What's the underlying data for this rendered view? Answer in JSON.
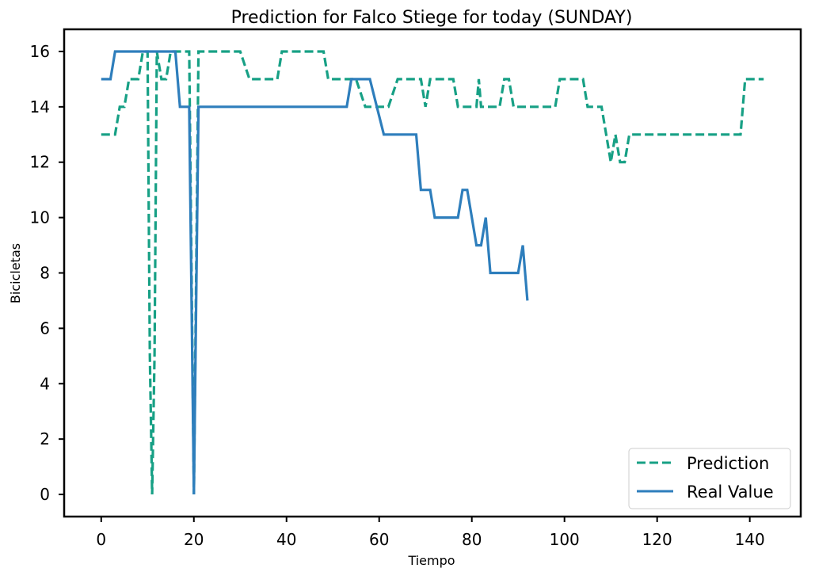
{
  "chart_data": {
    "type": "line",
    "title": "Prediction for Falco Stiege for today (SUNDAY)",
    "xlabel": "Tiempo",
    "ylabel": "Bicicletas",
    "xlim": [
      -8,
      151
    ],
    "ylim": [
      -0.8,
      16.8
    ],
    "xticks": [
      0,
      20,
      40,
      60,
      80,
      100,
      120,
      140
    ],
    "yticks": [
      0,
      2,
      4,
      6,
      8,
      10,
      12,
      14,
      16
    ],
    "grid": false,
    "legend_position": "lower-right",
    "series": [
      {
        "name": "Prediction",
        "color": "#17a085",
        "style": "dashed",
        "points": [
          [
            0,
            13
          ],
          [
            3,
            13
          ],
          [
            4,
            14
          ],
          [
            5,
            14
          ],
          [
            6,
            15
          ],
          [
            8,
            15
          ],
          [
            9,
            16
          ],
          [
            10,
            16
          ],
          [
            10.5,
            5
          ],
          [
            11,
            0
          ],
          [
            11.5,
            5
          ],
          [
            12,
            16
          ],
          [
            13,
            15
          ],
          [
            14,
            15
          ],
          [
            15,
            16
          ],
          [
            19,
            16
          ],
          [
            20,
            0
          ],
          [
            21,
            16
          ],
          [
            30,
            16
          ],
          [
            32,
            15
          ],
          [
            38,
            15
          ],
          [
            39,
            16
          ],
          [
            48,
            16
          ],
          [
            49,
            15
          ],
          [
            55,
            15
          ],
          [
            57,
            14
          ],
          [
            62,
            14
          ],
          [
            64,
            15
          ],
          [
            69,
            15
          ],
          [
            70,
            14
          ],
          [
            71,
            15
          ],
          [
            76,
            15
          ],
          [
            77,
            14
          ],
          [
            81,
            14
          ],
          [
            81.5,
            15
          ],
          [
            82,
            14
          ],
          [
            86,
            14
          ],
          [
            87,
            15
          ],
          [
            88,
            15
          ],
          [
            89,
            14
          ],
          [
            98,
            14
          ],
          [
            99,
            15
          ],
          [
            104,
            15
          ],
          [
            105,
            14
          ],
          [
            108,
            14
          ],
          [
            110,
            12
          ],
          [
            111,
            13
          ],
          [
            112,
            12
          ],
          [
            113,
            12
          ],
          [
            114,
            13
          ],
          [
            138,
            13
          ],
          [
            139,
            15
          ],
          [
            143,
            15
          ]
        ]
      },
      {
        "name": "Real Value",
        "color": "#2e7ebc",
        "style": "solid",
        "points": [
          [
            0,
            15
          ],
          [
            2,
            15
          ],
          [
            3,
            16
          ],
          [
            16,
            16
          ],
          [
            17,
            14
          ],
          [
            19,
            14
          ],
          [
            20,
            0
          ],
          [
            21,
            14
          ],
          [
            53,
            14
          ],
          [
            54,
            15
          ],
          [
            58,
            15
          ],
          [
            61,
            13
          ],
          [
            68,
            13
          ],
          [
            69,
            11
          ],
          [
            71,
            11
          ],
          [
            72,
            10
          ],
          [
            77,
            10
          ],
          [
            78,
            11
          ],
          [
            79,
            11
          ],
          [
            81,
            9
          ],
          [
            82,
            9
          ],
          [
            83,
            10
          ],
          [
            84,
            8
          ],
          [
            90,
            8
          ],
          [
            91,
            9
          ],
          [
            92,
            7
          ]
        ]
      }
    ]
  }
}
